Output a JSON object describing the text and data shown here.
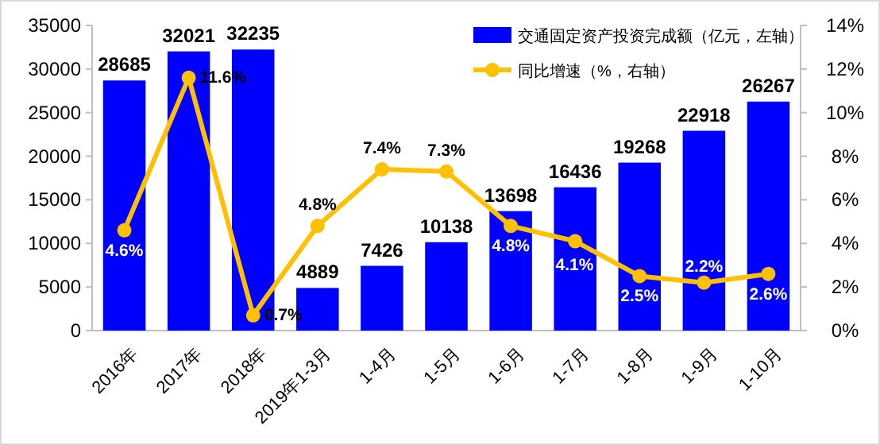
{
  "chart_data": {
    "type": "bar",
    "categories": [
      "2016年",
      "2017年",
      "2018年",
      "2019年1-3月",
      "1-4月",
      "1-5月",
      "1-6月",
      "1-7月",
      "1-8月",
      "1-9月",
      "1-10月"
    ],
    "series": [
      {
        "name": "交通固定资产投资完成额（亿元，左轴）",
        "type": "bar",
        "color": "#0000ff",
        "values": [
          28685,
          32021,
          32235,
          4889,
          7426,
          10138,
          13698,
          16436,
          19268,
          22918,
          26267
        ]
      },
      {
        "name": "同比增速（%，右轴）",
        "type": "line",
        "axis": "y2",
        "color": "#ffc000",
        "marker": "circle",
        "values": [
          4.6,
          11.6,
          0.7,
          4.8,
          7.4,
          7.3,
          4.8,
          4.1,
          2.5,
          2.2,
          2.6
        ],
        "value_labels": [
          "4.6%",
          "11.6%",
          "0.7%",
          "4.8%",
          "7.4%",
          "7.3%",
          "4.8%",
          "4.1%",
          "2.5%",
          "2.2%",
          "2.6%"
        ]
      }
    ],
    "data_labels": true,
    "ylim": [
      0,
      35000
    ],
    "yticks": [
      0,
      5000,
      10000,
      15000,
      20000,
      25000,
      30000,
      35000
    ],
    "y2lim": [
      0,
      14
    ],
    "y2ticks": [
      {
        "value": 0,
        "label": "0%"
      },
      {
        "value": 2,
        "label": "2%"
      },
      {
        "value": 4,
        "label": "4%"
      },
      {
        "value": 6,
        "label": "6%"
      },
      {
        "value": 8,
        "label": "8%"
      },
      {
        "value": 10,
        "label": "10%"
      },
      {
        "value": 12,
        "label": "12%"
      },
      {
        "value": 14,
        "label": "14%"
      }
    ],
    "grid": false,
    "legend": "top right"
  }
}
